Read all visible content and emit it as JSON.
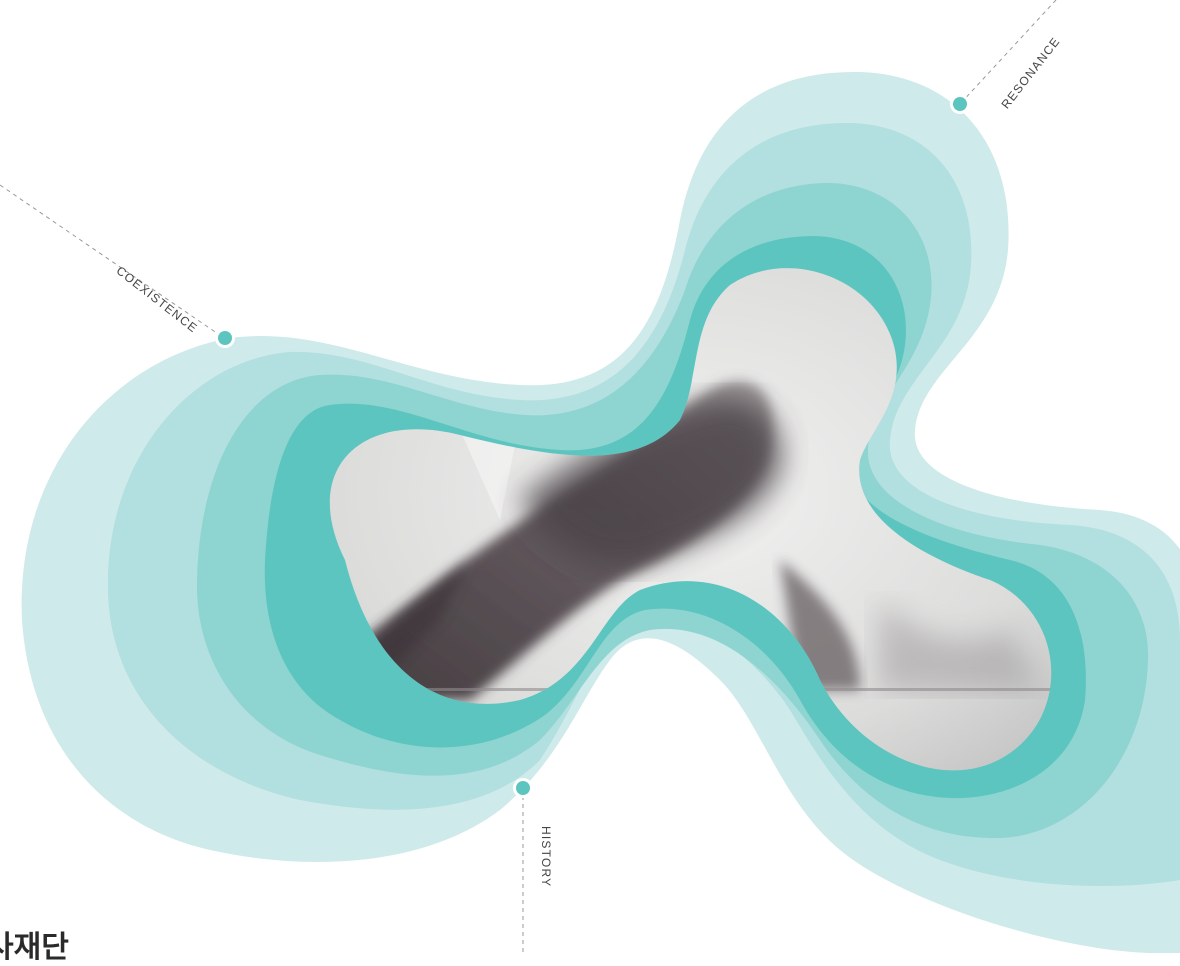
{
  "labels": {
    "coexistence": "COEXISTENCE",
    "resonance": "RESONANCE",
    "history": "HISTORY"
  },
  "footer": {
    "org_name": "사재단"
  },
  "colors": {
    "band_outer": "#cfeaea",
    "band_2": "#b2dfdf",
    "band_3": "#8ed4d0",
    "band_inner": "#5cc5bf",
    "dot": "#5cc5bf",
    "ink": "#4a4247"
  }
}
